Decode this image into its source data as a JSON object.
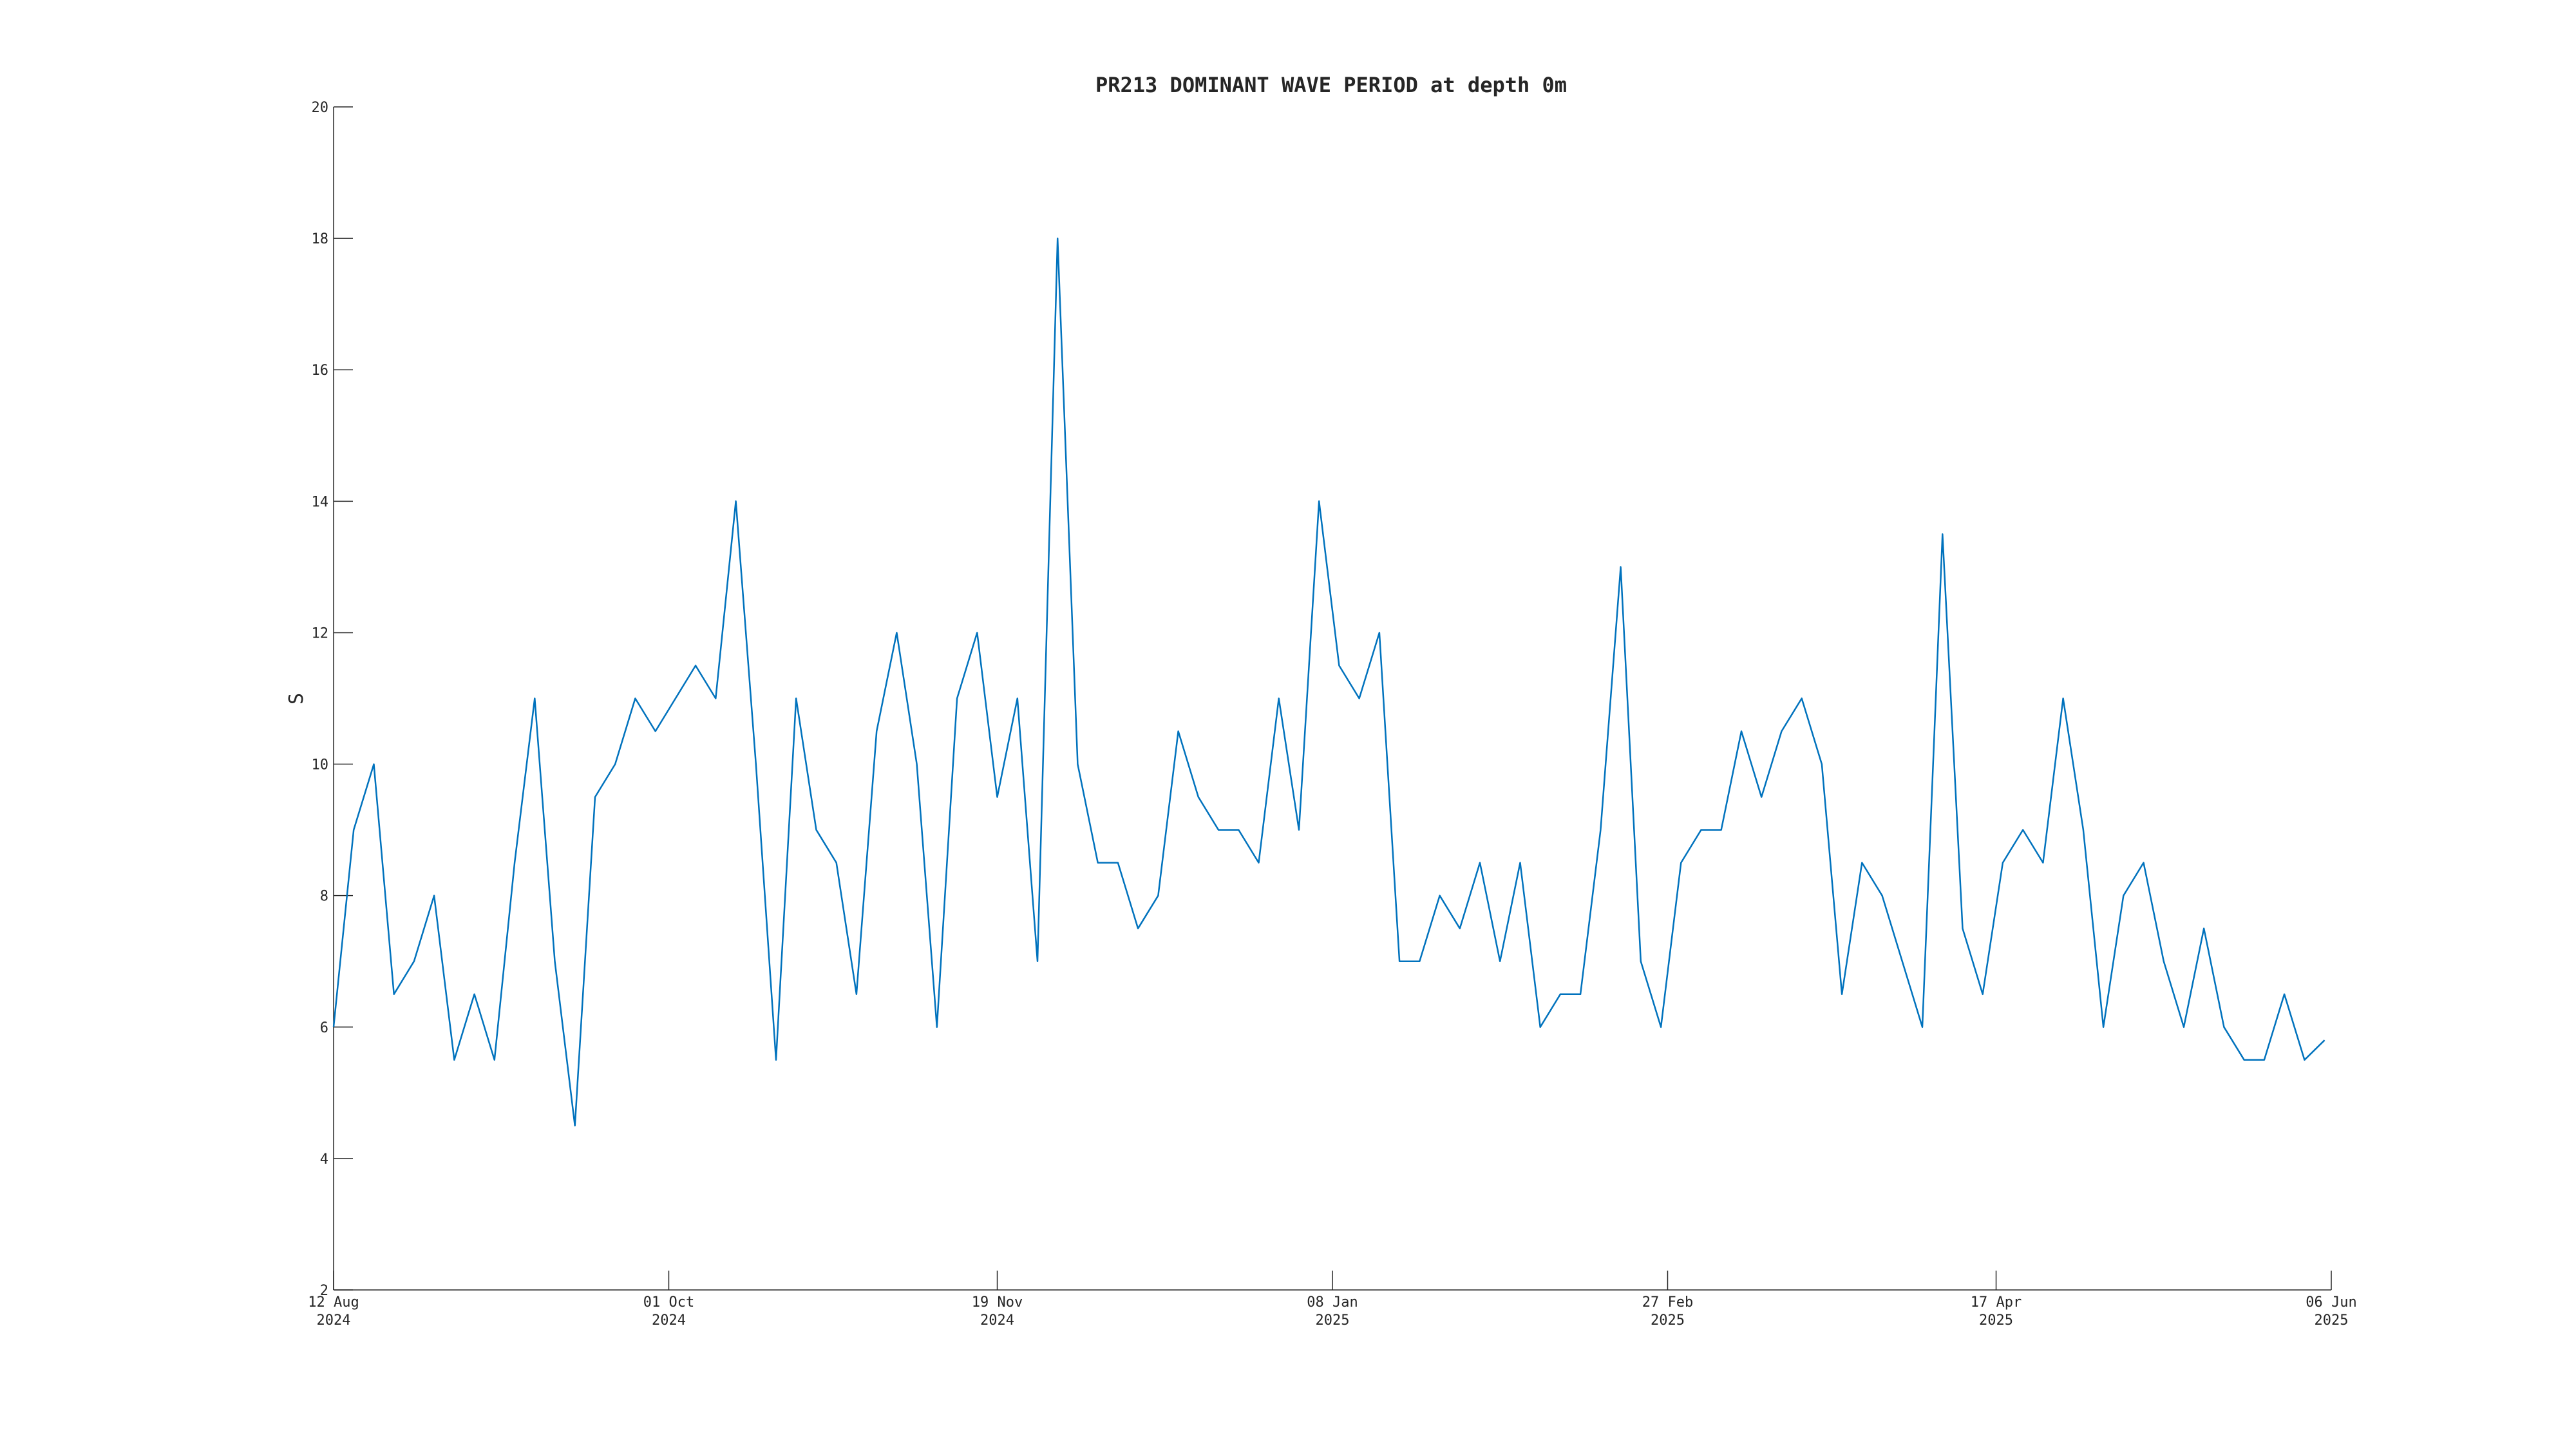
{
  "chart_data": {
    "type": "line",
    "title": "PR213 DOMINANT WAVE PERIOD at depth 0m",
    "y_label": "S",
    "x": [
      "2024-08-12",
      "2024-08-15",
      "2024-08-18",
      "2024-08-21",
      "2024-08-24",
      "2024-08-27",
      "2024-08-30",
      "2024-09-02",
      "2024-09-05",
      "2024-09-08",
      "2024-09-11",
      "2024-09-14",
      "2024-09-17",
      "2024-09-20",
      "2024-09-23",
      "2024-09-26",
      "2024-09-29",
      "2024-10-02",
      "2024-10-05",
      "2024-10-08",
      "2024-10-11",
      "2024-10-14",
      "2024-10-17",
      "2024-10-20",
      "2024-10-23",
      "2024-10-26",
      "2024-10-29",
      "2024-11-01",
      "2024-11-04",
      "2024-11-07",
      "2024-11-10",
      "2024-11-13",
      "2024-11-16",
      "2024-11-19",
      "2024-11-22",
      "2024-11-25",
      "2024-11-28",
      "2024-12-01",
      "2024-12-04",
      "2024-12-07",
      "2024-12-10",
      "2024-12-13",
      "2024-12-16",
      "2024-12-19",
      "2024-12-22",
      "2024-12-25",
      "2024-12-28",
      "2024-12-31",
      "2025-01-03",
      "2025-01-06",
      "2025-01-09",
      "2025-01-12",
      "2025-01-15",
      "2025-01-18",
      "2025-01-21",
      "2025-01-24",
      "2025-01-27",
      "2025-01-30",
      "2025-02-02",
      "2025-02-05",
      "2025-02-08",
      "2025-02-11",
      "2025-02-14",
      "2025-02-17",
      "2025-02-20",
      "2025-02-23",
      "2025-02-26",
      "2025-03-01",
      "2025-03-04",
      "2025-03-07",
      "2025-03-10",
      "2025-03-13",
      "2025-03-16",
      "2025-03-19",
      "2025-03-22",
      "2025-03-25",
      "2025-03-28",
      "2025-03-31",
      "2025-04-03",
      "2025-04-06",
      "2025-04-09",
      "2025-04-12",
      "2025-04-15",
      "2025-04-18",
      "2025-04-21",
      "2025-04-24",
      "2025-04-27",
      "2025-04-30",
      "2025-05-03",
      "2025-05-06",
      "2025-05-09",
      "2025-05-12",
      "2025-05-15",
      "2025-05-18",
      "2025-05-21",
      "2025-05-24",
      "2025-05-27",
      "2025-05-30",
      "2025-06-02",
      "2025-06-05"
    ],
    "series": [
      {
        "name": "DOMINANT WAVE PERIOD",
        "color": "#0072bd",
        "values": [
          6,
          9,
          10,
          6.5,
          7,
          8,
          5.5,
          6.5,
          5.5,
          8.5,
          11,
          7,
          4.5,
          9.5,
          10,
          11,
          10.5,
          11,
          11.5,
          11,
          14,
          10,
          5.5,
          11,
          9,
          8.5,
          6.5,
          10.5,
          12,
          10,
          6,
          11,
          12,
          9.5,
          11,
          7,
          18,
          10,
          8.5,
          8.5,
          7.5,
          8,
          10.5,
          9.5,
          9,
          9,
          8.5,
          11,
          9,
          14,
          11.5,
          11,
          12,
          7,
          7,
          8,
          7.5,
          8.5,
          7,
          8.5,
          6,
          6.5,
          6.5,
          9,
          13,
          7,
          6,
          8.5,
          9,
          9,
          10.5,
          9.5,
          10.5,
          11,
          10,
          6.5,
          8.5,
          8,
          7,
          6,
          13.5,
          7.5,
          6.5,
          8.5,
          9,
          8.5,
          11,
          9,
          6,
          8,
          8.5,
          7,
          6,
          7.5,
          6,
          5.5,
          5.5,
          6.5,
          5.5,
          5.8
        ]
      }
    ],
    "xlim": [
      "2024-08-12",
      "2025-06-06"
    ],
    "xticks": [
      {
        "value": "2024-08-12",
        "label": "12 Aug\n2024"
      },
      {
        "value": "2024-10-01",
        "label": "01 Oct\n2024"
      },
      {
        "value": "2024-11-19",
        "label": "19 Nov\n2024"
      },
      {
        "value": "2025-01-08",
        "label": "08 Jan\n2025"
      },
      {
        "value": "2025-02-27",
        "label": "27 Feb\n2025"
      },
      {
        "value": "2025-04-17",
        "label": "17 Apr\n2025"
      },
      {
        "value": "2025-06-06",
        "label": "06 Jun\n2025"
      }
    ],
    "ylim": [
      2,
      20
    ],
    "yticks": [
      2,
      4,
      6,
      8,
      10,
      12,
      14,
      16,
      18,
      20
    ],
    "grid": false
  }
}
